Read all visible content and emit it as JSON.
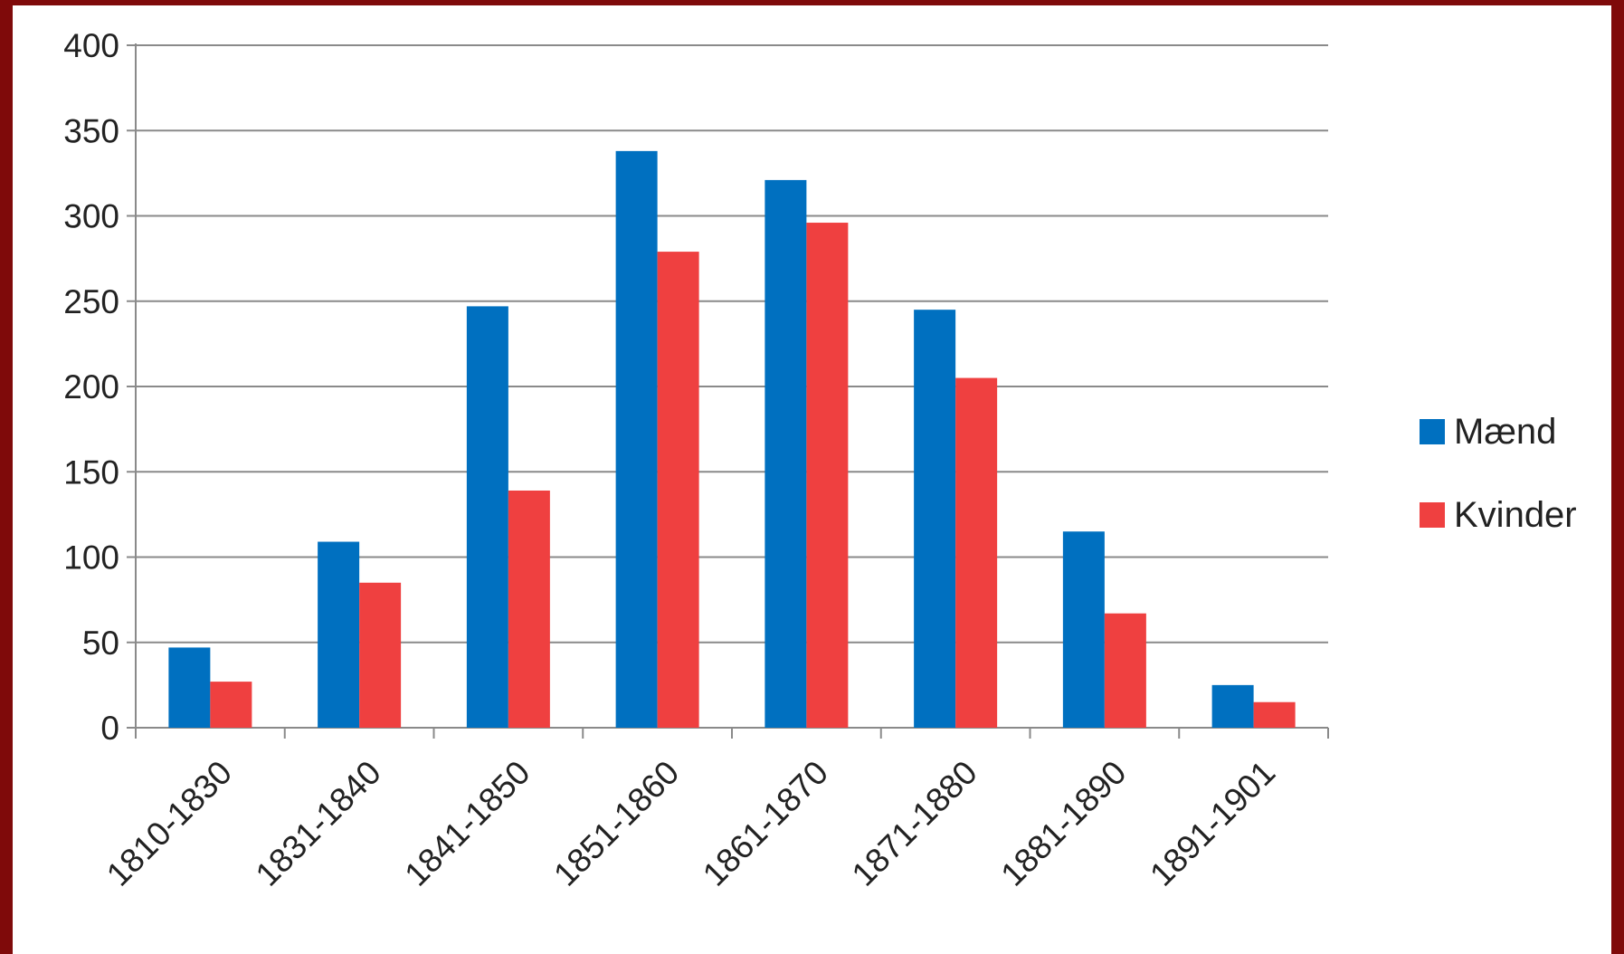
{
  "chart_data": {
    "type": "bar",
    "categories": [
      "1810-1830",
      "1831-1840",
      "1841-1850",
      "1851-1860",
      "1861-1870",
      "1871-1880",
      "1881-1890",
      "1891-1901"
    ],
    "series": [
      {
        "name": "Mænd",
        "color": "#0070c0",
        "values": [
          47,
          109,
          247,
          338,
          321,
          245,
          115,
          25
        ]
      },
      {
        "name": "Kvinder",
        "color": "#ef4040",
        "values": [
          27,
          85,
          139,
          279,
          296,
          205,
          67,
          15
        ]
      }
    ],
    "title": "",
    "xlabel": "",
    "ylabel": "",
    "ylim": [
      0,
      400
    ],
    "yticks": [
      0,
      50,
      100,
      150,
      200,
      250,
      300,
      350,
      400
    ],
    "grid": true,
    "legend_position": "right"
  }
}
